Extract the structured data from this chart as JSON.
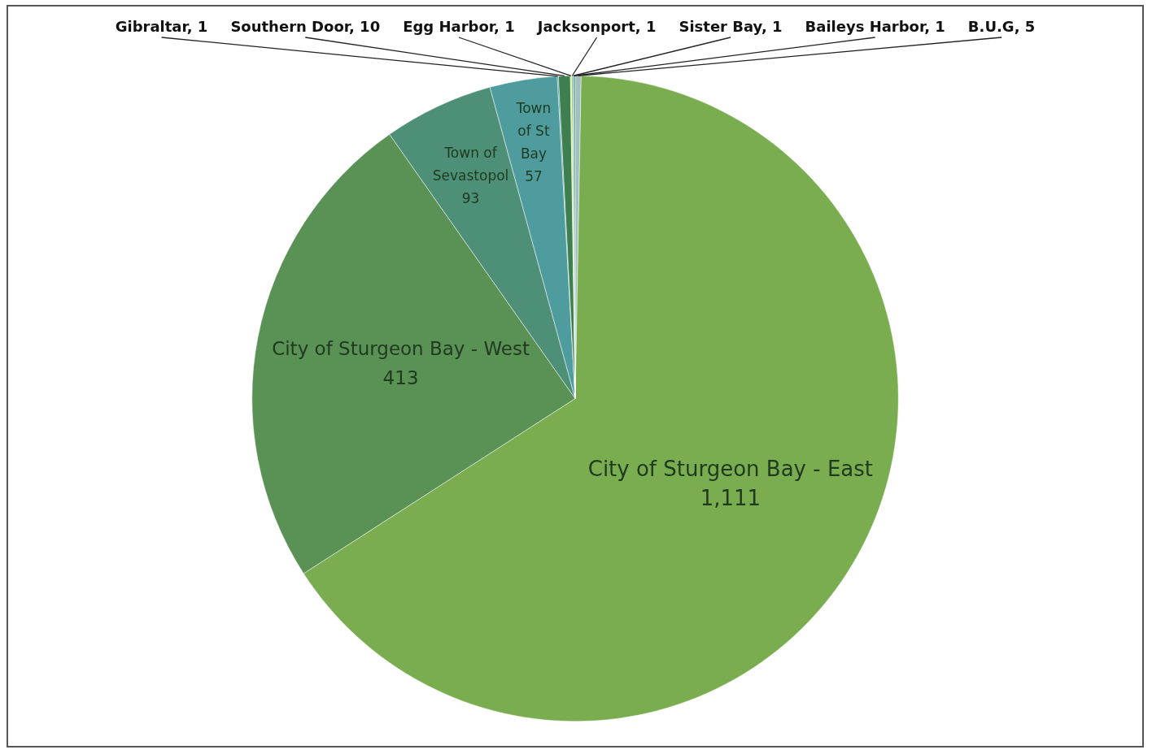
{
  "chart_data": {
    "type": "pie",
    "categories": [
      "B.U.G",
      "City of Sturgeon Bay - East",
      "City of Sturgeon Bay - West",
      "Town of Sevastopol",
      "Town of St Bay",
      "Gibraltar",
      "Southern Door",
      "Egg Harbor",
      "Jacksonport",
      "Sister Bay",
      "Baileys Harbor"
    ],
    "values": [
      5,
      1111,
      413,
      93,
      57,
      1,
      10,
      1,
      1,
      1,
      1
    ],
    "value_labels": [
      "5",
      "1,111",
      "413",
      "93",
      "57",
      "1",
      "10",
      "1",
      "1",
      "1",
      "1"
    ],
    "colors": [
      "#9fbfc0",
      "#7aad4f",
      "#5a9155",
      "#4d8f77",
      "#4e9c9e",
      "#2f8fa0",
      "#3d7f4f",
      "#e8e83a",
      "#6bbf6b",
      "#3f9fb0",
      "#2e7d5e"
    ],
    "legend": false
  }
}
